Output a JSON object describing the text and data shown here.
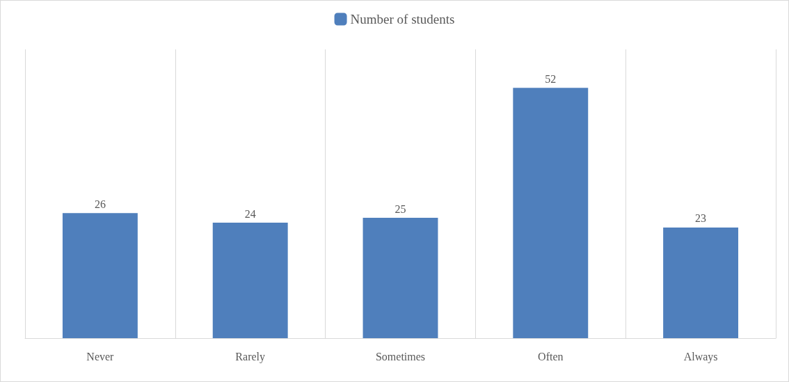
{
  "chart_data": {
    "type": "bar",
    "categories": [
      "Never",
      "Rarely",
      "Sometimes",
      "Often",
      "Always"
    ],
    "series": [
      {
        "name": "Number of students",
        "color": "#4f7fbc",
        "values": [
          26,
          24,
          25,
          52,
          23
        ]
      }
    ],
    "data_labels": true,
    "legend": "top",
    "grid": "x"
  }
}
